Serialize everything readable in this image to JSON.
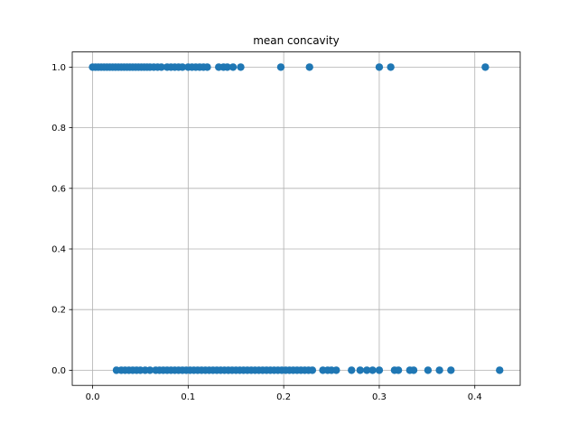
{
  "chart_data": {
    "type": "scatter",
    "title": "mean concavity",
    "xlabel": "",
    "ylabel": "",
    "xlim": [
      -0.0213,
      0.4475
    ],
    "ylim": [
      -0.05,
      1.05
    ],
    "xticks": [
      0.0,
      0.1,
      0.2,
      0.3,
      0.4
    ],
    "xtick_labels": [
      "0.0",
      "0.1",
      "0.2",
      "0.3",
      "0.4"
    ],
    "yticks": [
      0.0,
      0.2,
      0.4,
      0.6,
      0.8,
      1.0
    ],
    "ytick_labels": [
      "0.0",
      "0.2",
      "0.4",
      "0.6",
      "0.8",
      "1.0"
    ],
    "grid": true,
    "marker_color": "#1f77b4",
    "series": [
      {
        "x": [
          0.0,
          0.003,
          0.006,
          0.009,
          0.012,
          0.015,
          0.018,
          0.021,
          0.024,
          0.027,
          0.03,
          0.033,
          0.036,
          0.039,
          0.042,
          0.045,
          0.048,
          0.051,
          0.054,
          0.057,
          0.06,
          0.064,
          0.068,
          0.072,
          0.078,
          0.082,
          0.086,
          0.09,
          0.094,
          0.1,
          0.104,
          0.108,
          0.112,
          0.116,
          0.12,
          0.132,
          0.137,
          0.141,
          0.147,
          0.155,
          0.197,
          0.227,
          0.3,
          0.312,
          0.411,
          0.025,
          0.03,
          0.034,
          0.038,
          0.042,
          0.046,
          0.05,
          0.055,
          0.06,
          0.066,
          0.07,
          0.074,
          0.078,
          0.082,
          0.086,
          0.09,
          0.094,
          0.098,
          0.102,
          0.106,
          0.11,
          0.114,
          0.118,
          0.122,
          0.126,
          0.13,
          0.134,
          0.138,
          0.142,
          0.146,
          0.15,
          0.154,
          0.158,
          0.162,
          0.166,
          0.17,
          0.174,
          0.178,
          0.182,
          0.186,
          0.19,
          0.194,
          0.198,
          0.202,
          0.206,
          0.21,
          0.214,
          0.218,
          0.222,
          0.226,
          0.23,
          0.241,
          0.246,
          0.25,
          0.255,
          0.271,
          0.28,
          0.287,
          0.293,
          0.3,
          0.316,
          0.32,
          0.332,
          0.336,
          0.351,
          0.363,
          0.375,
          0.426
        ],
        "y": [
          1,
          1,
          1,
          1,
          1,
          1,
          1,
          1,
          1,
          1,
          1,
          1,
          1,
          1,
          1,
          1,
          1,
          1,
          1,
          1,
          1,
          1,
          1,
          1,
          1,
          1,
          1,
          1,
          1,
          1,
          1,
          1,
          1,
          1,
          1,
          1,
          1,
          1,
          1,
          1,
          1,
          1,
          1,
          1,
          1,
          0,
          0,
          0,
          0,
          0,
          0,
          0,
          0,
          0,
          0,
          0,
          0,
          0,
          0,
          0,
          0,
          0,
          0,
          0,
          0,
          0,
          0,
          0,
          0,
          0,
          0,
          0,
          0,
          0,
          0,
          0,
          0,
          0,
          0,
          0,
          0,
          0,
          0,
          0,
          0,
          0,
          0,
          0,
          0,
          0,
          0,
          0,
          0,
          0,
          0,
          0,
          0,
          0,
          0,
          0,
          0,
          0,
          0,
          0,
          0,
          0,
          0,
          0,
          0,
          0,
          0,
          0,
          0
        ]
      }
    ]
  }
}
